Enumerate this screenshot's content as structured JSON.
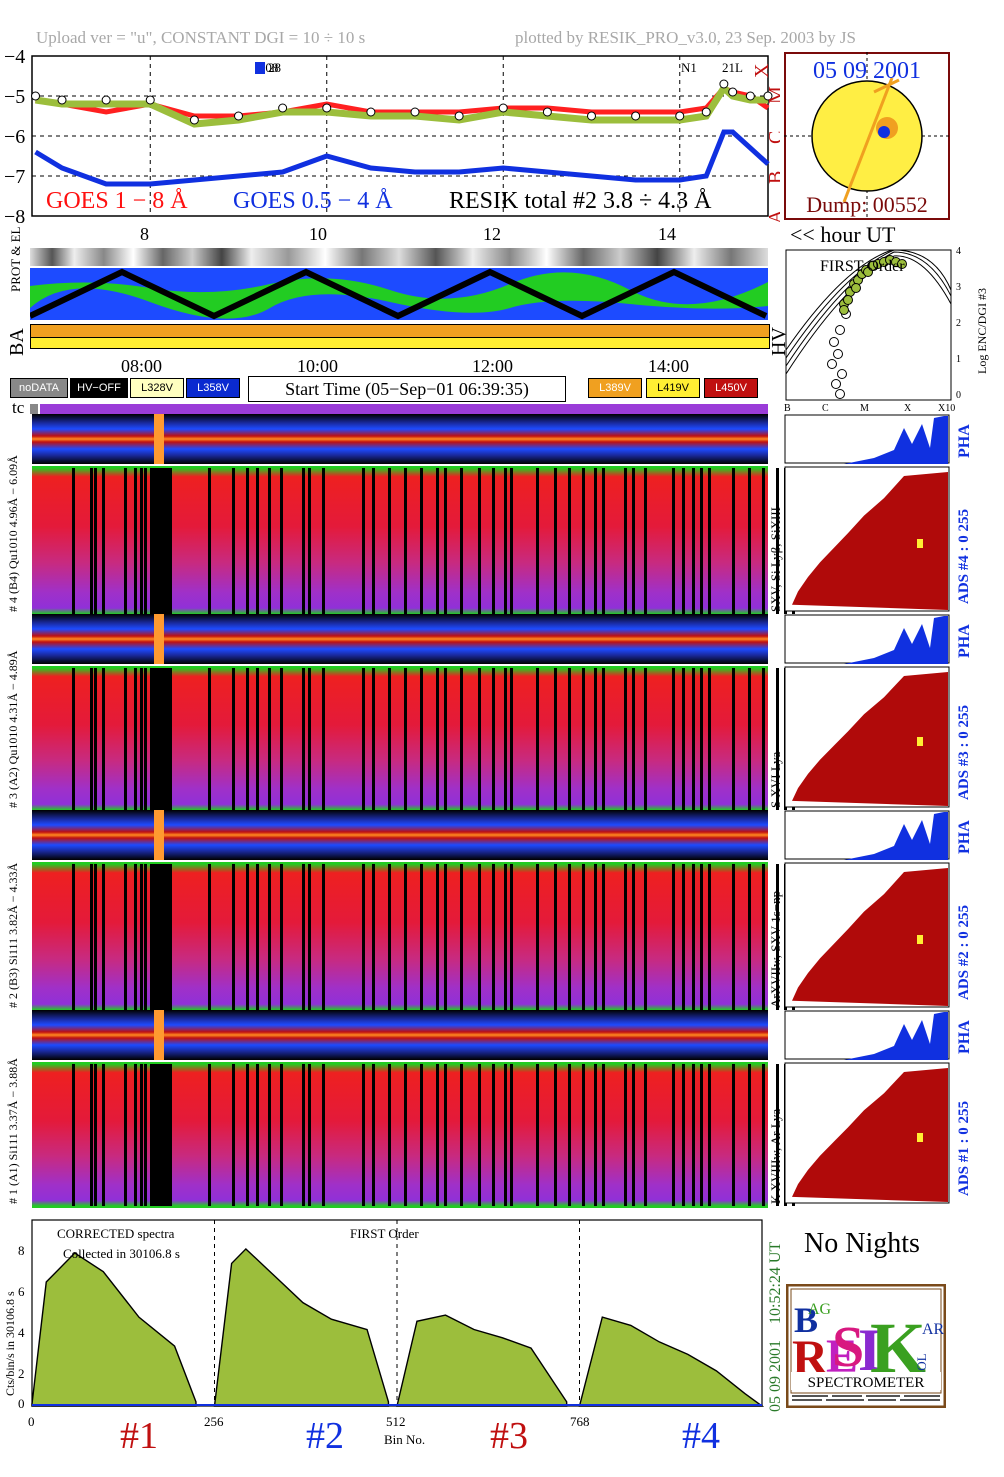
{
  "header": {
    "left": "Upload ver = \"u\", CONSTANT  DGI =  10 ÷  10 s",
    "right": "plotted by RESIK_PRO_v3.0, 23 Sep. 2003 by JS"
  },
  "goes_panel": {
    "y_ticks": [
      "−4",
      "−5",
      "−6",
      "−7",
      "−8"
    ],
    "class_labels": [
      "X",
      "M",
      "C",
      "B",
      "A"
    ],
    "legend_goes1": "GOES 1 − 8 Å",
    "legend_goes2": "GOES 0.5 − 4 Å",
    "legend_resik": "RESIK total #2  3.8 ÷ 4.3 Å",
    "event_label_1": "N08",
    "event_label_1b": "28",
    "event_label_2": "N1",
    "event_label_2b": "21L",
    "colors": {
      "goes1": "#ff2020",
      "goes2": "#1030e0",
      "resik": "#9cbe3c"
    }
  },
  "sun_panel": {
    "date": "05 09 2001",
    "dump": "Dump: 00552"
  },
  "hour_axis": {
    "ticks": [
      "8",
      "10",
      "12",
      "14"
    ],
    "label": "<< hour UT"
  },
  "status_panel": {
    "label_prot": "PROT & EL",
    "label_ba": "BA",
    "label_hv": "HV"
  },
  "time_axis": {
    "ticks": [
      "08:00",
      "10:00",
      "12:00",
      "14:00"
    ]
  },
  "legend": {
    "nodata": "noDATA",
    "hvoff": "HV−OFF",
    "l328": "L328V",
    "l358": "L358V",
    "start_time": "Start Time (05−Sep−01 06:39:35)",
    "l389": "L389V",
    "l419": "L419V",
    "l450": "L450V"
  },
  "tc_label": "tc",
  "first_order_plot": {
    "title": "FIRST Order",
    "ylabel": "Log ENC/DGI #3",
    "y_ticks": [
      "4",
      "3",
      "2",
      "1",
      "0"
    ],
    "x_ticks": [
      "B",
      "C",
      "M",
      "X",
      "X10"
    ]
  },
  "channels": [
    {
      "pha_label": "PHA",
      "left_label": "# 4 (B4)  Qu1010  4.96Å − 6.09Å",
      "right_label": "SXV, Si Lyβ, SiXIII",
      "ads_label": "ADS #4 :     0  255"
    },
    {
      "pha_label": "PHA",
      "left_label": "# 3 (A2)  Qu1010  4.31Å − 4.89Å",
      "right_label": "S XVI Lya",
      "ads_label": "ADS #3 :     0  255"
    },
    {
      "pha_label": "PHA",
      "left_label": "# 2 (B3)  Si111  3.82Å − 4.33Å",
      "right_label": "ArXVIIw, SXV 1s−np",
      "ads_label": "ADS #2 :     0  255"
    },
    {
      "pha_label": "PHA",
      "left_label": "# 1 (A1)  Si111  3.37Å − 3.88Å",
      "right_label": "K XVIIIw, Ar Lya",
      "ads_label": "ADS #1 :     0  255"
    }
  ],
  "spectrum_panel": {
    "title_left": "CORRECTED spectra",
    "title_mid": "FIRST Order",
    "collected": "Collected in 30106.8 s",
    "ylabel": "Cts/bin/s in 30106.8 s",
    "y_ticks": [
      "8",
      "6",
      "4",
      "2",
      "0"
    ],
    "x_ticks": [
      "0",
      "256",
      "512",
      "768"
    ],
    "xlabel": "Bin No.",
    "right_time": "10:52:24 UT",
    "right_date": "05 09 2001",
    "section_labels": [
      "#1",
      "#2",
      "#3",
      "#4"
    ]
  },
  "no_nights": "No Nights",
  "logo": {
    "text": "SPECTROMETER",
    "letters": [
      "B",
      "R",
      "E",
      "S",
      "I",
      "K",
      "SOL",
      "AR",
      "AG"
    ]
  },
  "chart_data": [
    {
      "type": "line",
      "title": "RESIK total #2  3.8 ÷ 4.3 Å",
      "xlabel": "<< hour UT",
      "ylabel": "",
      "xlim": [
        6.66,
        15.0
      ],
      "ylim": [
        -8,
        -4
      ],
      "x": [
        6.7,
        7.0,
        7.5,
        8.0,
        8.5,
        9.0,
        9.5,
        10.0,
        10.5,
        11.0,
        11.5,
        12.0,
        12.5,
        13.0,
        13.5,
        14.0,
        14.3,
        14.5,
        14.6,
        14.8,
        15.0
      ],
      "series": [
        {
          "name": "GOES 1 − 8 Å",
          "values": [
            -5.1,
            -5.2,
            -5.4,
            -5.2,
            -5.5,
            -5.5,
            -5.4,
            -5.2,
            -5.4,
            -5.4,
            -5.4,
            -5.3,
            -5.3,
            -5.4,
            -5.4,
            -5.4,
            -5.3,
            -4.8,
            -4.9,
            -5.0,
            -5.3
          ]
        },
        {
          "name": "GOES 0.5 − 4 Å",
          "values": [
            -6.4,
            -6.8,
            -7.2,
            -7.2,
            -7.1,
            -7.0,
            -6.9,
            -6.5,
            -6.8,
            -6.9,
            -6.9,
            -6.8,
            -6.9,
            -7.0,
            -7.1,
            -7.1,
            -7.0,
            -5.9,
            -5.9,
            -6.3,
            -6.7
          ]
        },
        {
          "name": "RESIK total #2  3.8 ÷ 4.3 Å",
          "values": [
            -5.1,
            -5.2,
            -5.2,
            -5.2,
            -5.7,
            -5.6,
            -5.4,
            -5.4,
            -5.5,
            -5.5,
            -5.6,
            -5.4,
            -5.5,
            -5.6,
            -5.6,
            -5.6,
            -5.5,
            -4.8,
            -5.0,
            -5.1,
            -5.1
          ]
        }
      ],
      "y_ticks": [
        -4,
        -5,
        -6,
        -7,
        -8
      ],
      "x_ticks": [
        8,
        10,
        12,
        14
      ],
      "grid": true
    },
    {
      "type": "area",
      "title": "CORRECTED spectra",
      "xlabel": "Bin No.",
      "ylabel": "Cts/bin/s in 30106.8 s",
      "xlim": [
        0,
        1024
      ],
      "ylim": [
        0,
        9
      ],
      "x": [
        0,
        20,
        60,
        100,
        150,
        200,
        230,
        256,
        280,
        300,
        340,
        380,
        420,
        470,
        500,
        512,
        540,
        580,
        620,
        660,
        700,
        750,
        768,
        800,
        840,
        880,
        920,
        960,
        1000,
        1024
      ],
      "series": [
        {
          "name": "FIRST Order",
          "values": [
            0.1,
            6.0,
            7.4,
            6.5,
            4.3,
            2.9,
            0.2,
            0,
            6.9,
            7.6,
            6.3,
            5.0,
            4.2,
            3.7,
            0.2,
            0,
            4.1,
            4.4,
            3.7,
            3.3,
            2.8,
            0.2,
            0,
            4.3,
            3.9,
            3.1,
            2.5,
            1.7,
            0.6,
            0
          ]
        }
      ],
      "y_ticks": [
        0,
        2,
        4,
        6,
        8
      ],
      "x_ticks": [
        0,
        256,
        512,
        768
      ],
      "grid": false
    }
  ]
}
